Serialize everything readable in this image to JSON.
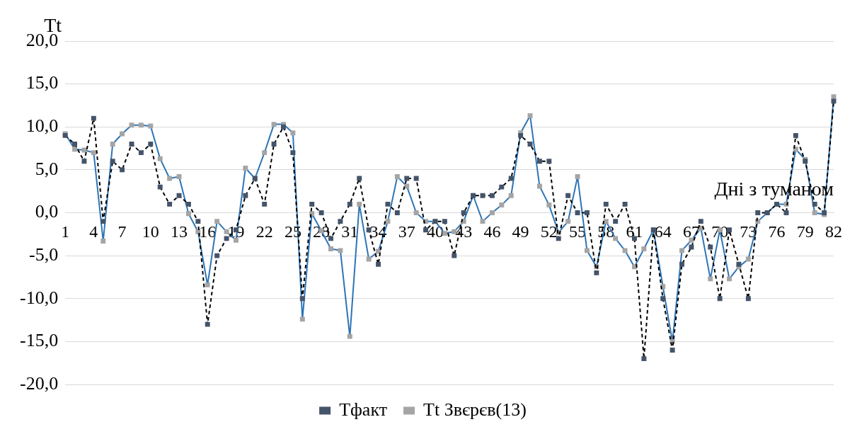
{
  "chart_data": {
    "type": "line",
    "xlabel": "Дні з туманом",
    "ylabel": "Tt",
    "categories": [
      "1",
      null,
      null,
      "4",
      null,
      null,
      "7",
      null,
      null,
      "10",
      null,
      null,
      "13",
      null,
      null,
      "16",
      null,
      null,
      "19",
      null,
      null,
      "22",
      null,
      null,
      "25",
      null,
      null,
      "28",
      null,
      null,
      "31",
      null,
      null,
      "34",
      null,
      null,
      "37",
      null,
      null,
      "40",
      null,
      null,
      "43",
      null,
      null,
      "46",
      null,
      null,
      "49",
      null,
      null,
      "52",
      null,
      null,
      "55",
      null,
      null,
      "58",
      null,
      null,
      "61",
      null,
      null,
      "64",
      null,
      null,
      "67",
      null,
      null,
      "70",
      null,
      null,
      "73",
      null,
      null,
      "76",
      null,
      null,
      "79",
      null,
      null,
      "82"
    ],
    "series": [
      {
        "name": "Тфакт",
        "color": "#000000",
        "line_style": "dashed",
        "values": [
          9,
          8,
          6,
          11,
          -1,
          6,
          5,
          8,
          7,
          8,
          3,
          1,
          2,
          1,
          -1,
          -13,
          -5,
          -3,
          -2,
          2,
          4,
          1,
          8,
          10,
          7,
          -10,
          1,
          0,
          -3,
          -1,
          1,
          4,
          -2,
          -6,
          1,
          0,
          4,
          4,
          -2,
          -1,
          -1,
          -5,
          0,
          2,
          2,
          2,
          3,
          4,
          9,
          8,
          6,
          6,
          -3,
          2,
          0,
          0,
          -7,
          1,
          -1,
          1,
          -3,
          -17,
          -2,
          -10,
          -16,
          -6,
          -4,
          -1,
          -4,
          -10,
          -2,
          -6,
          -10,
          0,
          0,
          1,
          0,
          9,
          6,
          1,
          0,
          13
        ]
      },
      {
        "name": "Tt Звєрєв(13)",
        "color": "#2e75b6",
        "line_style": "solid",
        "values": [
          9.2,
          7.4,
          7.3,
          7.0,
          -3.3,
          8.0,
          9.2,
          10.2,
          10.2,
          10.1,
          6.3,
          4.0,
          4.2,
          -0.1,
          -2.2,
          -8.4,
          -1.0,
          -2.2,
          -3.2,
          5.2,
          4.0,
          7.0,
          10.3,
          10.3,
          9.3,
          -12.4,
          -0.1,
          -2.1,
          -4.2,
          -4.4,
          -14.4,
          1.0,
          -5.4,
          -4.5,
          -1.0,
          4.2,
          3.1,
          0.0,
          -1.0,
          -1.0,
          -2.4,
          -2.2,
          -1.0,
          2.0,
          -1.0,
          0.0,
          0.9,
          2.0,
          9.3,
          11.3,
          3.1,
          0.9,
          -2.3,
          -1.0,
          4.2,
          -4.4,
          -6.3,
          -1.0,
          -3.0,
          -4.4,
          -6.3,
          -4.2,
          -2.0,
          -8.6,
          -15.0,
          -4.4,
          -3.2,
          -1.8,
          -7.7,
          -2.0,
          -7.7,
          -6.3,
          -5.4,
          -1.0,
          0.0,
          1.0,
          1.0,
          7.4,
          6.2,
          0.0,
          -0.2,
          13.5
        ]
      }
    ],
    "ylim": [
      -20,
      20
    ],
    "yticks": [
      {
        "value": -20,
        "label": "-20,0"
      },
      {
        "value": -15,
        "label": "-15,0"
      },
      {
        "value": -10,
        "label": "-10,0"
      },
      {
        "value": -5,
        "label": "-5,0"
      },
      {
        "value": 0,
        "label": "0,0"
      },
      {
        "value": 5,
        "label": "5,0"
      },
      {
        "value": 10,
        "label": "10,0"
      },
      {
        "value": 15,
        "label": "15,0"
      },
      {
        "value": 20,
        "label": "20,0"
      }
    ],
    "grid": "y",
    "legend": "bottom",
    "marker": "square"
  }
}
